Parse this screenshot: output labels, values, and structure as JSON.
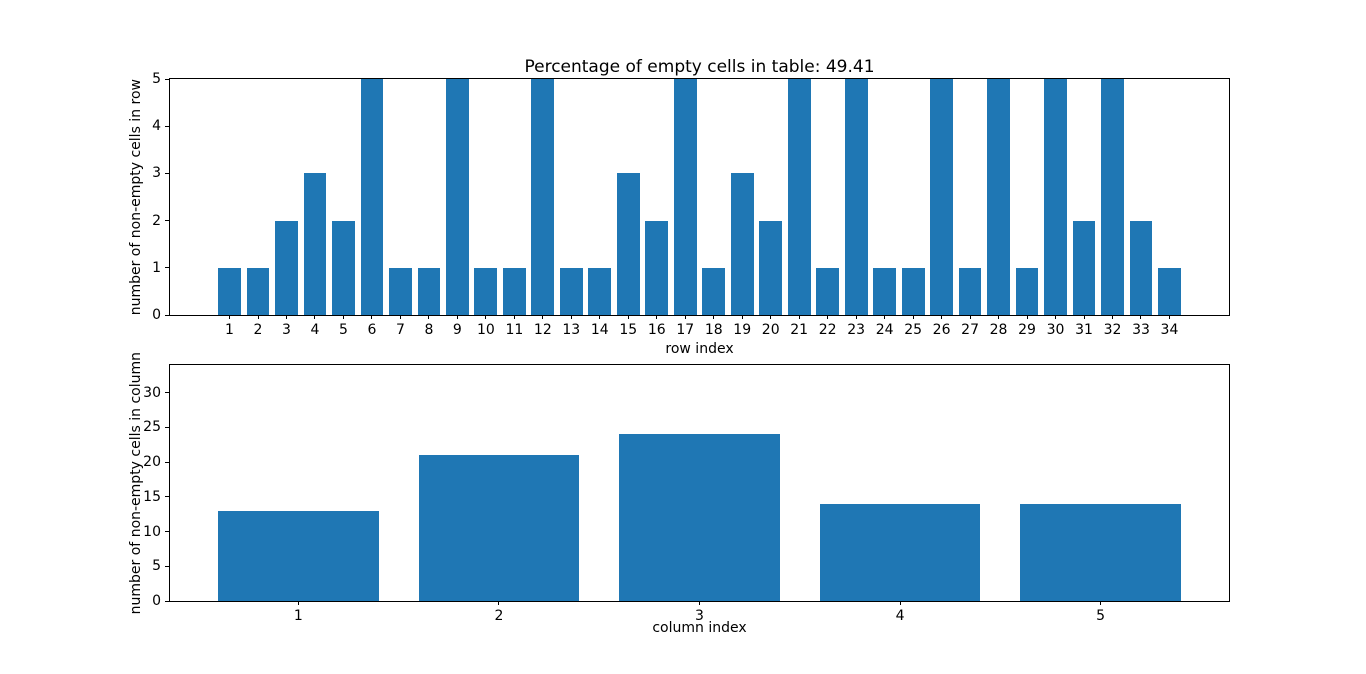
{
  "figure": {
    "background": "#ffffff",
    "spine_color": "#000000",
    "text_color": "#000000"
  },
  "chart_data": [
    {
      "type": "bar",
      "title": "Percentage of empty cells in table: 49.41",
      "xlabel": "row index",
      "ylabel": "number of non-empty cells in row",
      "categories": [
        1,
        2,
        3,
        4,
        5,
        6,
        7,
        8,
        9,
        10,
        11,
        12,
        13,
        14,
        15,
        16,
        17,
        18,
        19,
        20,
        21,
        22,
        23,
        24,
        25,
        26,
        27,
        28,
        29,
        30,
        31,
        32,
        33,
        34
      ],
      "values": [
        1,
        1,
        2,
        3,
        2,
        5,
        1,
        1,
        5,
        1,
        1,
        5,
        1,
        1,
        3,
        2,
        5,
        1,
        3,
        2,
        5,
        1,
        5,
        1,
        1,
        5,
        1,
        5,
        1,
        5,
        2,
        5,
        2,
        1
      ],
      "ylim": [
        0,
        5
      ],
      "yticks": [
        0,
        1,
        2,
        3,
        4,
        5
      ],
      "bar_color": "#1f77b4",
      "bar_width": 0.8,
      "grid": false,
      "legend": null
    },
    {
      "type": "bar",
      "title": "",
      "xlabel": "column index",
      "ylabel": "number of non-empty cells in column",
      "categories": [
        1,
        2,
        3,
        4,
        5
      ],
      "values": [
        13,
        21,
        24,
        14,
        14
      ],
      "ylim": [
        0,
        34
      ],
      "yticks": [
        0,
        5,
        10,
        15,
        20,
        25,
        30
      ],
      "bar_color": "#1f77b4",
      "bar_width": 0.8,
      "grid": false,
      "legend": null
    }
  ]
}
